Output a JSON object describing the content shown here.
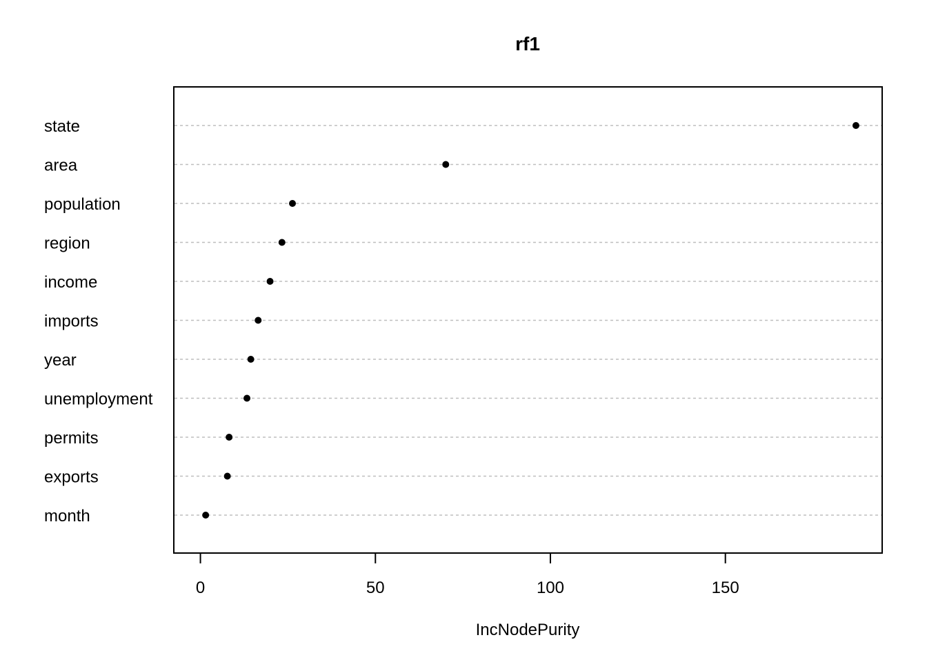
{
  "chart_data": {
    "type": "scatter",
    "title": "rf1",
    "xlabel": "IncNodePurity",
    "ylabel": "",
    "categories": [
      "state",
      "area",
      "population",
      "region",
      "income",
      "imports",
      "year",
      "unemployment",
      "permits",
      "exports",
      "month"
    ],
    "values": [
      187.3,
      70.1,
      26.3,
      23.3,
      19.9,
      16.5,
      14.4,
      13.3,
      8.2,
      7.7,
      1.5
    ],
    "xlim": [
      -7.6,
      194.8
    ],
    "xticks": [
      0,
      50,
      100,
      150
    ],
    "grid": "dotted horizontal lines per variable",
    "point_color": "#000000",
    "grid_color": "#bebebe"
  }
}
